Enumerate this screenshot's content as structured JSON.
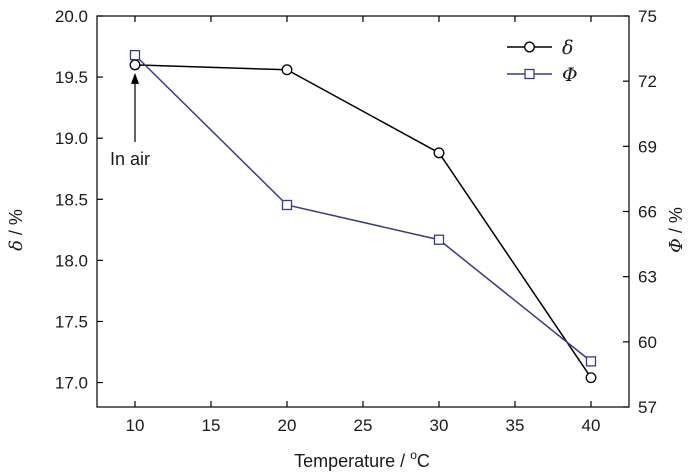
{
  "chart_data": {
    "type": "line",
    "x": [
      10,
      20,
      30,
      40
    ],
    "xlim": [
      7.5,
      42.5
    ],
    "xticks": [
      10,
      15,
      20,
      25,
      30,
      35,
      40
    ],
    "xlabel_main": "Temperature / ",
    "xlabel_sup": "o",
    "xlabel_tail": "C",
    "y_left": {
      "ylim": [
        16.8,
        20.0
      ],
      "ticks": [
        17.0,
        17.5,
        18.0,
        18.5,
        19.0,
        19.5,
        20.0
      ],
      "tick_labels": [
        "17.0",
        "17.5",
        "18.0",
        "18.5",
        "19.0",
        "19.5",
        "20.0"
      ],
      "label_symbol": "δ",
      "label_unit": " / %"
    },
    "y_right": {
      "ylim": [
        57,
        75
      ],
      "ticks": [
        57,
        60,
        63,
        66,
        69,
        72,
        75
      ],
      "tick_labels": [
        "57",
        "60",
        "63",
        "66",
        "69",
        "72",
        "75"
      ],
      "label_symbol": "Φ",
      "label_unit": " / %"
    },
    "series": [
      {
        "name": "δ",
        "axis": "left",
        "marker": "circle",
        "color": "#000000",
        "values": [
          19.6,
          19.56,
          18.88,
          17.04
        ]
      },
      {
        "name": "Φ",
        "axis": "right",
        "marker": "square",
        "color": "#3a3a8c",
        "values": [
          73.2,
          66.3,
          64.7,
          59.1
        ]
      }
    ],
    "annotation": {
      "text": "In air",
      "x": 10
    },
    "legend_position": "top-right"
  }
}
